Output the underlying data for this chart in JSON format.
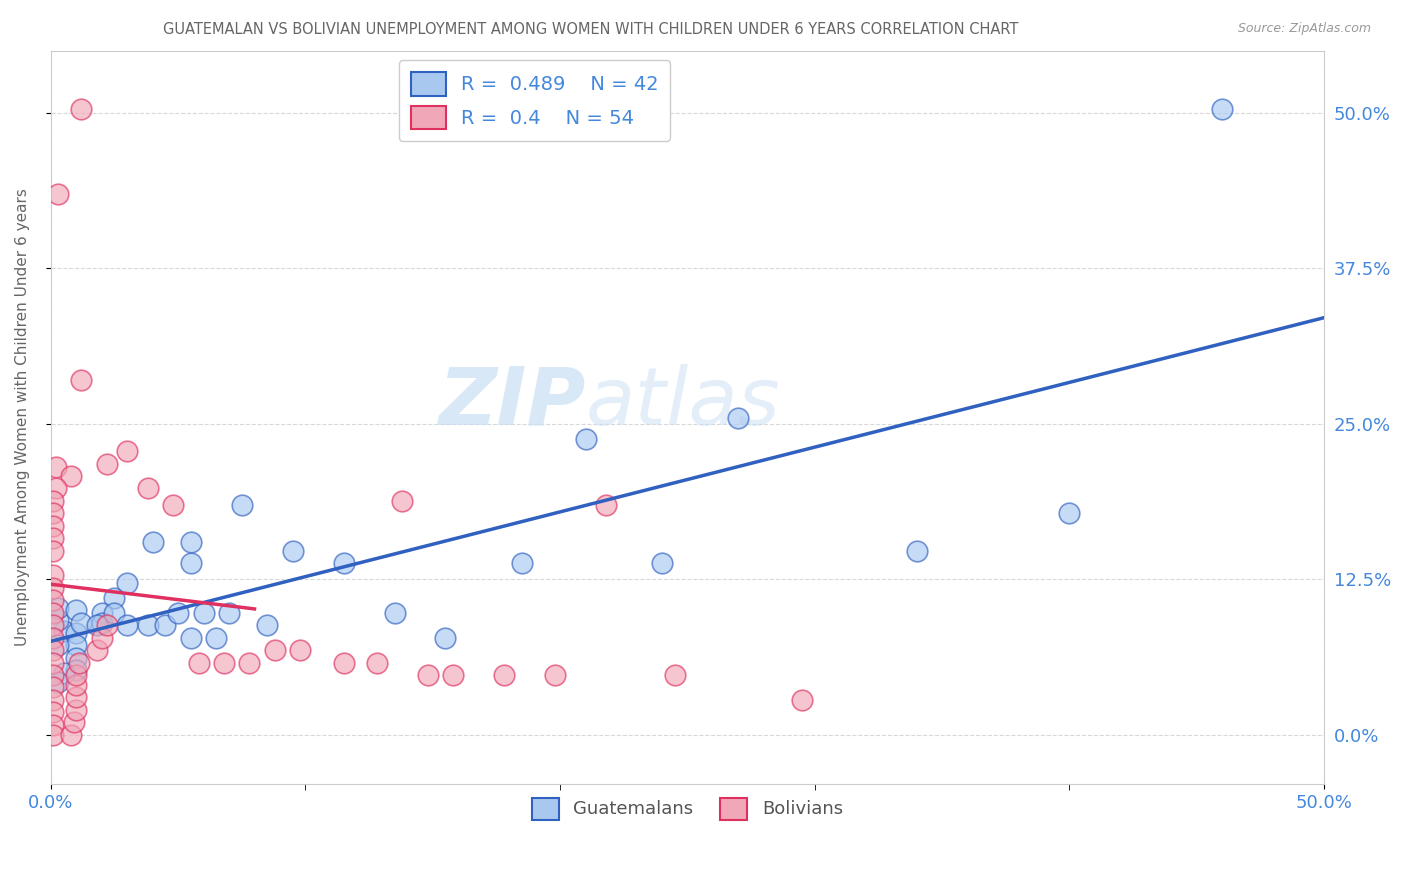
{
  "title": "GUATEMALAN VS BOLIVIAN UNEMPLOYMENT AMONG WOMEN WITH CHILDREN UNDER 6 YEARS CORRELATION CHART",
  "source": "Source: ZipAtlas.com",
  "ylabel": "Unemployment Among Women with Children Under 6 years",
  "xlim": [
    0.0,
    0.5
  ],
  "ylim": [
    -0.04,
    0.55
  ],
  "watermark_text": "ZIP",
  "watermark_text2": "atlas",
  "legend": {
    "guatemalan": {
      "R": 0.489,
      "N": 42,
      "color": "#a8c8f0",
      "label": "Guatemalans"
    },
    "bolivian": {
      "R": 0.4,
      "N": 54,
      "color": "#f0a8b8",
      "label": "Bolivians"
    }
  },
  "guatemalan_scatter": [
    [
      0.46,
      0.503
    ],
    [
      0.27,
      0.255
    ],
    [
      0.21,
      0.238
    ],
    [
      0.005,
      0.083
    ],
    [
      0.04,
      0.155
    ],
    [
      0.055,
      0.138
    ],
    [
      0.075,
      0.185
    ],
    [
      0.055,
      0.155
    ],
    [
      0.03,
      0.122
    ],
    [
      0.025,
      0.11
    ],
    [
      0.02,
      0.098
    ],
    [
      0.02,
      0.09
    ],
    [
      0.01,
      0.082
    ],
    [
      0.01,
      0.072
    ],
    [
      0.01,
      0.062
    ],
    [
      0.01,
      0.052
    ],
    [
      0.005,
      0.05
    ],
    [
      0.003,
      0.042
    ],
    [
      0.003,
      0.072
    ],
    [
      0.003,
      0.092
    ],
    [
      0.003,
      0.102
    ],
    [
      0.01,
      0.1
    ],
    [
      0.012,
      0.09
    ],
    [
      0.018,
      0.088
    ],
    [
      0.025,
      0.098
    ],
    [
      0.03,
      0.088
    ],
    [
      0.038,
      0.088
    ],
    [
      0.045,
      0.088
    ],
    [
      0.05,
      0.098
    ],
    [
      0.055,
      0.078
    ],
    [
      0.06,
      0.098
    ],
    [
      0.065,
      0.078
    ],
    [
      0.07,
      0.098
    ],
    [
      0.085,
      0.088
    ],
    [
      0.095,
      0.148
    ],
    [
      0.115,
      0.138
    ],
    [
      0.135,
      0.098
    ],
    [
      0.155,
      0.078
    ],
    [
      0.185,
      0.138
    ],
    [
      0.24,
      0.138
    ],
    [
      0.34,
      0.148
    ],
    [
      0.4,
      0.178
    ]
  ],
  "bolivian_scatter": [
    [
      0.012,
      0.503
    ],
    [
      0.003,
      0.435
    ],
    [
      0.012,
      0.285
    ],
    [
      0.002,
      0.215
    ],
    [
      0.008,
      0.208
    ],
    [
      0.002,
      0.198
    ],
    [
      0.001,
      0.188
    ],
    [
      0.001,
      0.178
    ],
    [
      0.001,
      0.168
    ],
    [
      0.001,
      0.158
    ],
    [
      0.001,
      0.148
    ],
    [
      0.001,
      0.128
    ],
    [
      0.001,
      0.118
    ],
    [
      0.001,
      0.108
    ],
    [
      0.001,
      0.098
    ],
    [
      0.001,
      0.088
    ],
    [
      0.001,
      0.078
    ],
    [
      0.001,
      0.068
    ],
    [
      0.001,
      0.058
    ],
    [
      0.001,
      0.048
    ],
    [
      0.001,
      0.038
    ],
    [
      0.001,
      0.028
    ],
    [
      0.001,
      0.018
    ],
    [
      0.001,
      0.008
    ],
    [
      0.001,
      0.0
    ],
    [
      0.008,
      0.0
    ],
    [
      0.009,
      0.01
    ],
    [
      0.01,
      0.02
    ],
    [
      0.01,
      0.03
    ],
    [
      0.01,
      0.04
    ],
    [
      0.01,
      0.048
    ],
    [
      0.011,
      0.058
    ],
    [
      0.018,
      0.068
    ],
    [
      0.02,
      0.078
    ],
    [
      0.022,
      0.088
    ],
    [
      0.022,
      0.218
    ],
    [
      0.03,
      0.228
    ],
    [
      0.038,
      0.198
    ],
    [
      0.048,
      0.185
    ],
    [
      0.058,
      0.058
    ],
    [
      0.068,
      0.058
    ],
    [
      0.078,
      0.058
    ],
    [
      0.088,
      0.068
    ],
    [
      0.098,
      0.068
    ],
    [
      0.115,
      0.058
    ],
    [
      0.128,
      0.058
    ],
    [
      0.138,
      0.188
    ],
    [
      0.148,
      0.048
    ],
    [
      0.158,
      0.048
    ],
    [
      0.178,
      0.048
    ],
    [
      0.198,
      0.048
    ],
    [
      0.218,
      0.185
    ],
    [
      0.245,
      0.048
    ],
    [
      0.295,
      0.028
    ]
  ],
  "background_color": "#ffffff",
  "grid_color": "#d8d8d8",
  "blue_line_color": "#3060c0",
  "pink_line_color": "#e03060",
  "scatter_blue": "#a8c8f0",
  "scatter_pink": "#f0a8b8",
  "title_color": "#666666",
  "tick_label_color": "#4488dd",
  "right_yticks": [
    0.0,
    0.125,
    0.25,
    0.375,
    0.5
  ],
  "pink_trendline_x": [
    0.0,
    0.08
  ],
  "blue_trendline_x": [
    0.0,
    0.5
  ]
}
